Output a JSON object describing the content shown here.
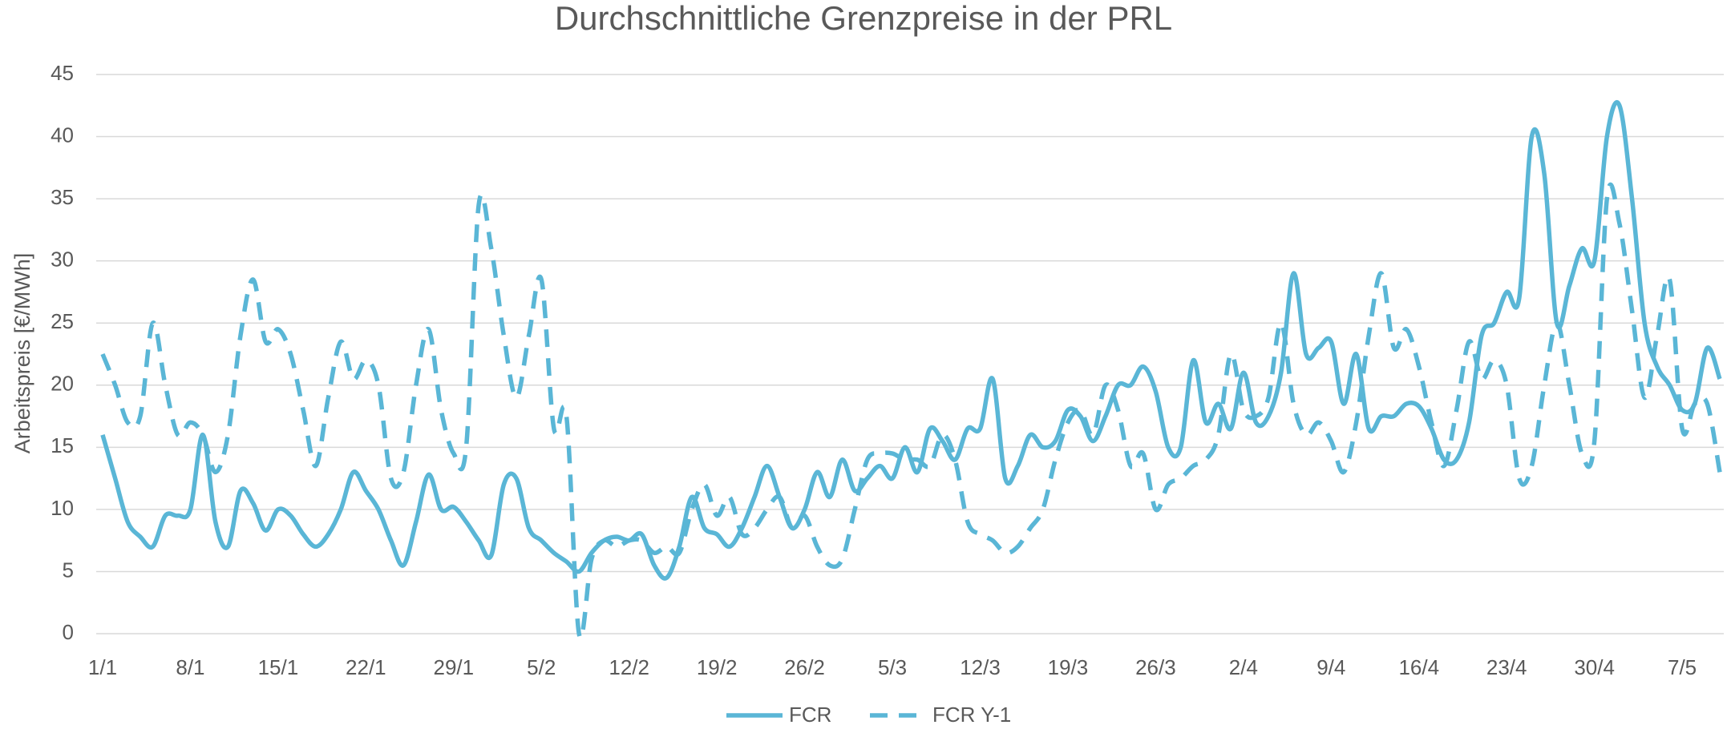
{
  "chart_data": {
    "type": "line",
    "title": "Durchschnittliche Grenzpreise in der PRL",
    "y_label": "Arbeitspreis [€/MWh]",
    "categories": [
      "1/1",
      null,
      null,
      null,
      null,
      null,
      null,
      "8/1",
      null,
      null,
      null,
      null,
      null,
      null,
      "15/1",
      null,
      null,
      null,
      null,
      null,
      null,
      "22/1",
      null,
      null,
      null,
      null,
      null,
      null,
      "29/1",
      null,
      null,
      null,
      null,
      null,
      null,
      "5/2",
      null,
      null,
      null,
      null,
      null,
      null,
      "12/2",
      null,
      null,
      null,
      null,
      null,
      null,
      "19/2",
      null,
      null,
      null,
      null,
      null,
      null,
      "26/2",
      null,
      null,
      null,
      null,
      null,
      null,
      "5/3",
      null,
      null,
      null,
      null,
      null,
      null,
      "12/3",
      null,
      null,
      null,
      null,
      null,
      null,
      "19/3",
      null,
      null,
      null,
      null,
      null,
      null,
      "26/3",
      null,
      null,
      null,
      null,
      null,
      null,
      "2/4",
      null,
      null,
      null,
      null,
      null,
      null,
      "9/4",
      null,
      null,
      null,
      null,
      null,
      null,
      "16/4",
      null,
      null,
      null,
      null,
      null,
      null,
      "23/4",
      null,
      null,
      null,
      null,
      null,
      null,
      "30/4",
      null,
      null,
      null,
      null,
      null,
      null,
      "7/5",
      null,
      null,
      null
    ],
    "series": [
      {
        "name": "FCR",
        "color": "#5ab6d6",
        "line_style": "solid",
        "values": [
          16,
          12.5,
          9,
          7.8,
          7,
          9.5,
          9.5,
          10,
          16,
          9,
          7,
          11.5,
          10.5,
          8.3,
          10,
          9.5,
          8,
          7,
          8,
          10,
          13,
          11.5,
          10,
          7.5,
          5.5,
          9,
          12.8,
          10,
          10.2,
          9,
          7.5,
          6.3,
          12,
          12.5,
          8.5,
          7.5,
          6.5,
          5.8,
          5,
          6.5,
          7.5,
          7.8,
          7.5,
          8,
          5.5,
          4.5,
          7,
          11,
          8.5,
          8,
          7,
          8.5,
          11,
          13.5,
          11,
          8.5,
          10,
          13,
          11,
          14,
          11.5,
          12.5,
          13.5,
          12.5,
          15,
          13,
          16.5,
          15.5,
          14,
          16.5,
          16.5,
          20.5,
          12.5,
          13.5,
          16,
          15,
          15.5,
          18,
          17.5,
          15.5,
          17.5,
          20,
          20,
          21.5,
          19.5,
          15,
          15,
          22,
          17,
          18.5,
          16.5,
          21,
          17,
          17.5,
          21,
          29,
          22.5,
          23,
          23.5,
          18.5,
          22.5,
          16.5,
          17.5,
          17.5,
          18.5,
          18.3,
          16.5,
          14,
          14,
          17,
          24,
          25,
          27.5,
          27,
          40,
          37,
          25,
          28,
          31,
          30,
          40,
          42.5,
          35,
          25,
          21.5,
          20,
          18,
          18.5,
          23,
          20.5
        ]
      },
      {
        "name": "FCR Y-1",
        "color": "#5ab6d6",
        "line_style": "dashed",
        "values": [
          22.5,
          20,
          17,
          17.5,
          25,
          20,
          16,
          17,
          16,
          13,
          16,
          24,
          28.5,
          23.5,
          24.5,
          22.5,
          18,
          13.5,
          19,
          23.5,
          20.5,
          22,
          20,
          12.5,
          13,
          20,
          24.5,
          18,
          14.5,
          15,
          34.5,
          31,
          24,
          19,
          24,
          28.5,
          16.5,
          17.5,
          0,
          6,
          7.5,
          7,
          7.5,
          7.5,
          6.5,
          7,
          6.5,
          10,
          12,
          9.5,
          11,
          8,
          8.5,
          10,
          11,
          8.5,
          9.5,
          7,
          5.5,
          6,
          10,
          14,
          14.5,
          14.5,
          14,
          14,
          13.5,
          16,
          14,
          9,
          8,
          7.5,
          6.5,
          7,
          8.5,
          10,
          14,
          17,
          18,
          16,
          20,
          18,
          13.5,
          14.5,
          10,
          12,
          12.5,
          13.5,
          14,
          16,
          22.5,
          18,
          17.5,
          19,
          25,
          18.5,
          16,
          17,
          15.5,
          13,
          17,
          24,
          29,
          23,
          24.5,
          21.5,
          17,
          13.5,
          18,
          23.5,
          20.5,
          22,
          20,
          12.5,
          13.5,
          20,
          25,
          20,
          14.5,
          15.5,
          35,
          33,
          26,
          19,
          24,
          28.5,
          16.5,
          18.5,
          18.5,
          13
        ]
      }
    ],
    "ylim": [
      0,
      45
    ],
    "yticks": [
      0,
      5,
      10,
      15,
      20,
      25,
      30,
      35,
      40,
      45
    ],
    "grid": true,
    "legend": "bottom"
  }
}
